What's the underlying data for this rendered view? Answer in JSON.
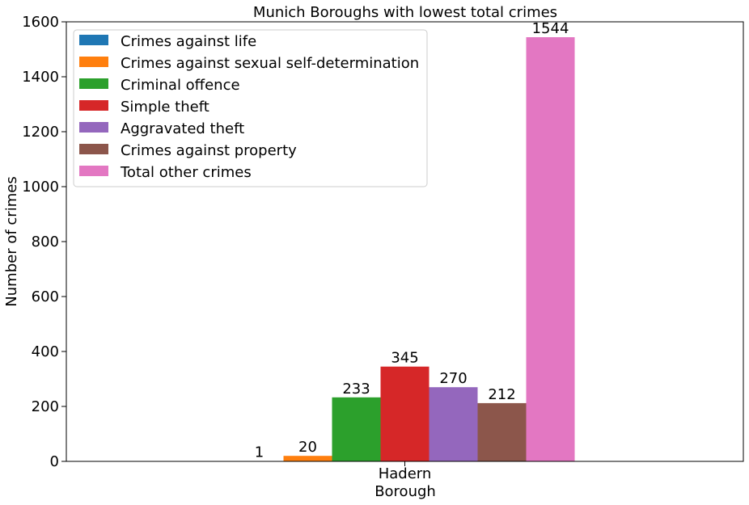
{
  "chart_data": {
    "type": "bar",
    "title": "Munich Boroughs with lowest total crimes",
    "xlabel": "Borough",
    "ylabel": "Number of crimes",
    "categories": [
      "Hadern"
    ],
    "ylim": [
      0,
      1600
    ],
    "yticks": [
      0,
      200,
      400,
      600,
      800,
      1000,
      1200,
      1400,
      1600
    ],
    "grid": false,
    "legend_position": "top-left",
    "series": [
      {
        "name": "Crimes against life",
        "values": [
          1
        ],
        "color": "#1f77b4"
      },
      {
        "name": "Crimes against sexual self-determination",
        "values": [
          20
        ],
        "color": "#ff7f0e"
      },
      {
        "name": "Criminal offence",
        "values": [
          233
        ],
        "color": "#2ca02c"
      },
      {
        "name": "Simple theft",
        "values": [
          345
        ],
        "color": "#d62728"
      },
      {
        "name": "Aggravated theft",
        "values": [
          270
        ],
        "color": "#9467bd"
      },
      {
        "name": "Crimes against property",
        "values": [
          212
        ],
        "color": "#8c564b"
      },
      {
        "name": "Total other crimes",
        "values": [
          1544
        ],
        "color": "#e377c2"
      }
    ]
  }
}
